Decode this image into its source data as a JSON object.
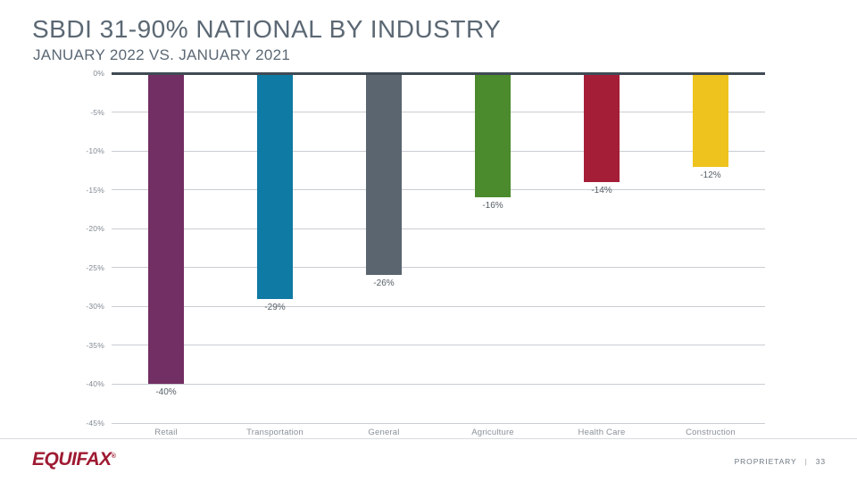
{
  "slide": {
    "title": "SBDI 31-90% NATIONAL BY INDUSTRY",
    "subtitle": "JANUARY 2022 VS. JANUARY 2021"
  },
  "chart_data": {
    "type": "bar",
    "title": "SBDI 31-90% NATIONAL BY INDUSTRY",
    "subtitle": "JANUARY 2022 VS. JANUARY 2021",
    "categories": [
      "Retail",
      "Transportation",
      "General",
      "Agriculture",
      "Health Care",
      "Construction"
    ],
    "values": [
      -40,
      -29,
      -26,
      -16,
      -14,
      -12
    ],
    "value_labels": [
      "-40%",
      "-29%",
      "-26%",
      "-16%",
      "-14%",
      "-12%"
    ],
    "bar_colors": [
      "#722f63",
      "#0f7aa3",
      "#5a656f",
      "#4b8a2d",
      "#a51e37",
      "#eec31d"
    ],
    "xlabel": "",
    "ylabel": "",
    "ylim": [
      -45,
      0
    ],
    "yticks": [
      "0%",
      "-5%",
      "-10%",
      "-15%",
      "-20%",
      "-25%",
      "-30%",
      "-35%",
      "-40%",
      "-45%"
    ],
    "ytick_values": [
      0,
      -5,
      -10,
      -15,
      -20,
      -25,
      -30,
      -35,
      -40,
      -45
    ],
    "grid": true,
    "legend": false
  },
  "footer": {
    "logo_text": "EQUIFAX",
    "registered_mark": "®",
    "proprietary_label": "PROPRIETARY",
    "separator": "|",
    "page_number": "33"
  },
  "colors": {
    "title_text": "#5b6874",
    "zero_axis_line": "#3f4a55",
    "gridline": "#c9cdd2",
    "tick_label": "#808992",
    "value_label": "#555e66",
    "category_label": "#8a9199",
    "equifax_red": "#9e1b32",
    "footer_text": "#6e7882"
  }
}
